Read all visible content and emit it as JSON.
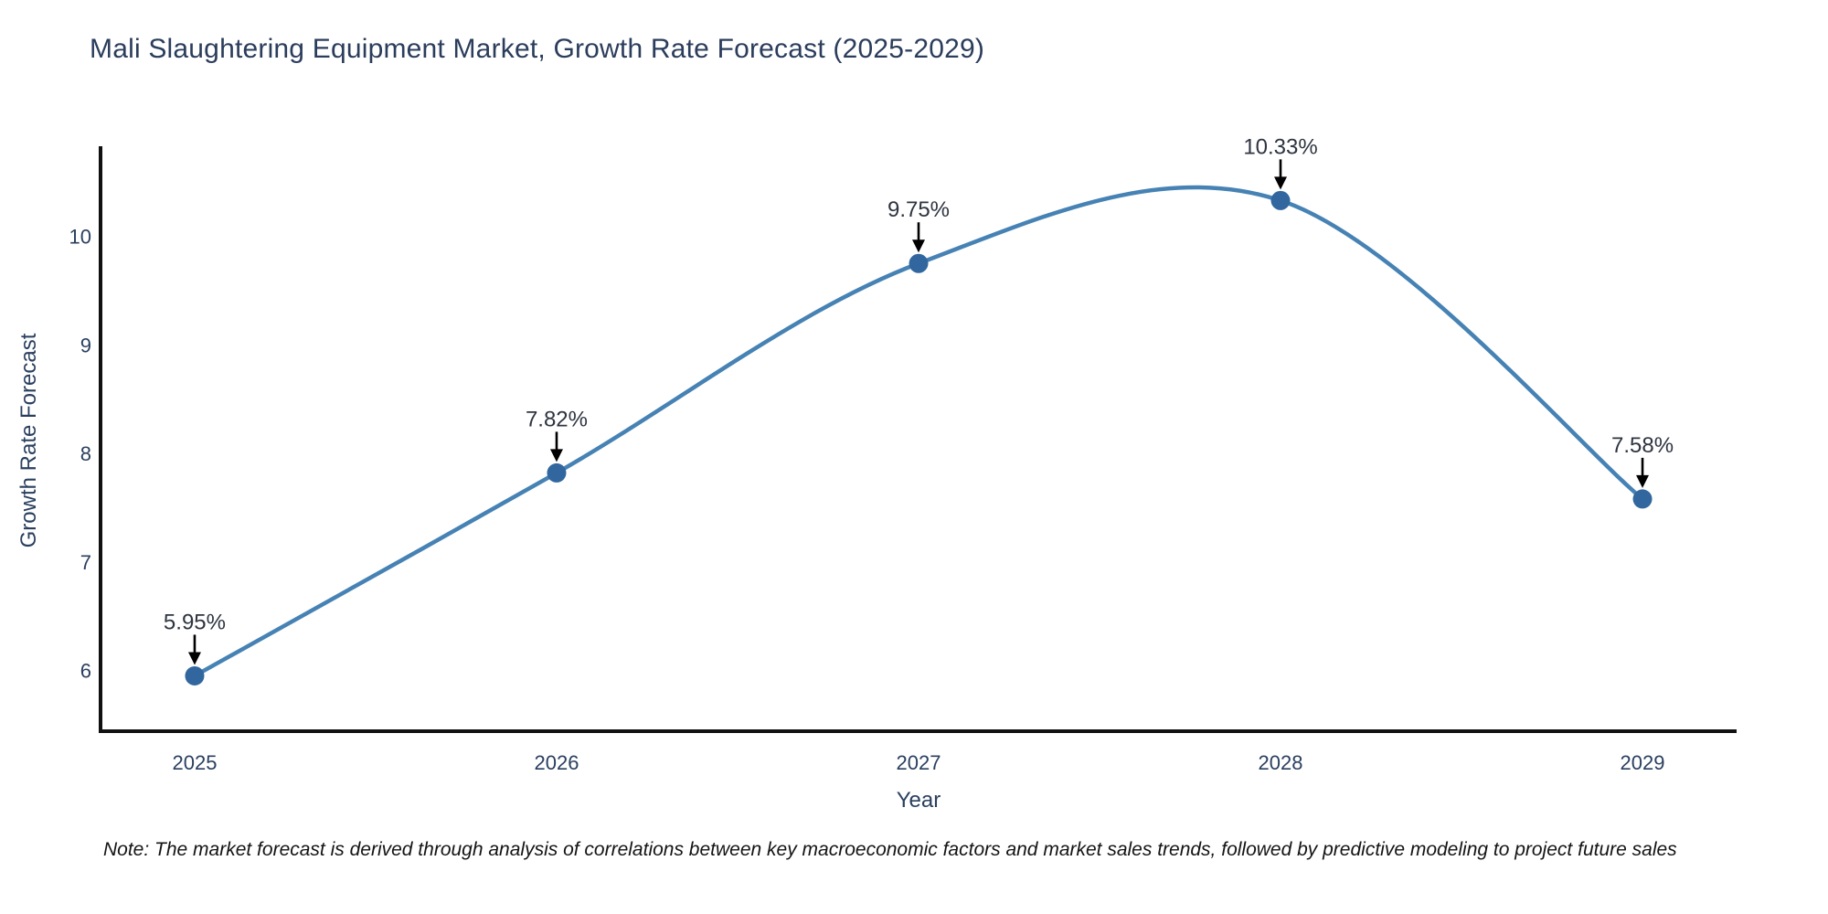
{
  "chart_data": {
    "type": "line",
    "title": "Mali Slaughtering Equipment Market, Growth Rate Forecast (2025-2029)",
    "x": [
      2025,
      2026,
      2027,
      2028,
      2029
    ],
    "series": [
      {
        "name": "Growth Rate Forecast",
        "values": [
          5.95,
          7.82,
          9.75,
          10.33,
          7.58
        ]
      }
    ],
    "point_labels": [
      "5.95%",
      "7.82%",
      "9.75%",
      "10.33%",
      "7.58%"
    ],
    "xlabel": "Year",
    "ylabel": "Growth Rate Forecast",
    "yticks": [
      6,
      7,
      8,
      9,
      10
    ],
    "xlim": [
      2024.74,
      2029.26
    ],
    "ylim": [
      5.44,
      10.83
    ],
    "line_shape": "spline",
    "grid": false,
    "legend": false,
    "colors": {
      "line": "#4682b4",
      "marker": "#31679e",
      "arrow": "#000000",
      "axis": "#111111",
      "tick_text": "#2a3f5f",
      "title_text": "#2b3d5c"
    },
    "note": "Note: The market forecast is derived through analysis of correlations between key macroeconomic factors and market sales trends, followed by predictive modeling to project future sales"
  }
}
